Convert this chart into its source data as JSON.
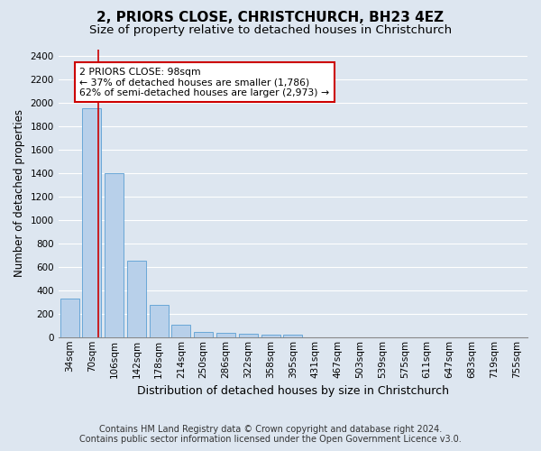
{
  "title": "2, PRIORS CLOSE, CHRISTCHURCH, BH23 4EZ",
  "subtitle": "Size of property relative to detached houses in Christchurch",
  "xlabel": "Distribution of detached houses by size in Christchurch",
  "ylabel": "Number of detached properties",
  "footer_line1": "Contains HM Land Registry data © Crown copyright and database right 2024.",
  "footer_line2": "Contains public sector information licensed under the Open Government Licence v3.0.",
  "categories": [
    "34sqm",
    "70sqm",
    "106sqm",
    "142sqm",
    "178sqm",
    "214sqm",
    "250sqm",
    "286sqm",
    "322sqm",
    "358sqm",
    "395sqm",
    "431sqm",
    "467sqm",
    "503sqm",
    "539sqm",
    "575sqm",
    "611sqm",
    "647sqm",
    "683sqm",
    "719sqm",
    "755sqm"
  ],
  "bar_values": [
    325,
    1950,
    1400,
    650,
    275,
    105,
    48,
    38,
    28,
    20,
    18,
    0,
    0,
    0,
    0,
    0,
    0,
    0,
    0,
    0,
    0
  ],
  "bar_color": "#b8d0ea",
  "bar_edge_color": "#5a9fd4",
  "vline_color": "#cc0000",
  "vline_x": 1.3,
  "annotation_text": "2 PRIORS CLOSE: 98sqm\n← 37% of detached houses are smaller (1,786)\n62% of semi-detached houses are larger (2,973) →",
  "annotation_box_color": "white",
  "annotation_box_edge": "#cc0000",
  "ylim": [
    0,
    2450
  ],
  "yticks": [
    0,
    200,
    400,
    600,
    800,
    1000,
    1200,
    1400,
    1600,
    1800,
    2000,
    2200,
    2400
  ],
  "background_color": "#dde6f0",
  "plot_bg_color": "#dde6f0",
  "grid_color": "white",
  "title_fontsize": 11,
  "subtitle_fontsize": 9.5,
  "xlabel_fontsize": 9,
  "ylabel_fontsize": 8.5,
  "tick_fontsize": 7.5,
  "footer_fontsize": 7
}
